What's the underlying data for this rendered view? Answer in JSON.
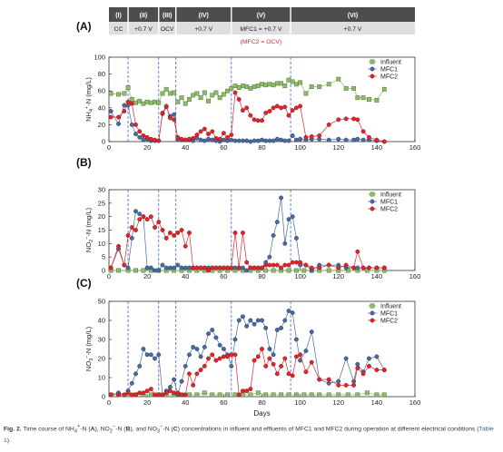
{
  "phases": {
    "labels": [
      "(I)",
      "(II)",
      "(III)",
      "(IV)",
      "(V)",
      "(VI)"
    ],
    "conditions": [
      "CC",
      "+0.7 V",
      "OCV",
      "+0.7 V",
      "MFC1 = +0.7 V",
      "+0.7 V"
    ],
    "note": "(MFC2 = OCV)",
    "boundaries_days": [
      0,
      10,
      26,
      35,
      64,
      95,
      160
    ],
    "colors": {
      "header_dark": "#4d4d4d",
      "header_light": "#dedede",
      "note": "#e0262b"
    }
  },
  "x_axis": {
    "label": "Days",
    "ticks": [
      0,
      20,
      40,
      60,
      80,
      100,
      120,
      140,
      160
    ],
    "lim": [
      0,
      160
    ]
  },
  "series_style": {
    "Influent": {
      "color": "#8fba6e",
      "marker": "square",
      "edge": "#4f7a33"
    },
    "MFC1": {
      "color": "#4a6b9c",
      "marker": "circle",
      "edge": "#1f3a66"
    },
    "MFC2": {
      "color": "#e0262b",
      "marker": "circle",
      "edge": "#8e1014"
    }
  },
  "chart_data": [
    {
      "type": "line",
      "panel": "(A)",
      "ylabel": "NH₄⁺-N (mg/L)",
      "ylabel_parts": [
        "NH",
        "4",
        "+",
        "-N (mg/L)"
      ],
      "ylim": [
        0,
        100
      ],
      "yticks": [
        0,
        20,
        40,
        60,
        80,
        100
      ],
      "legend": [
        "Influent",
        "MFC1",
        "MFC2"
      ],
      "series": [
        {
          "name": "Influent",
          "x": [
            1,
            5,
            8,
            10,
            12,
            14,
            16,
            18,
            20,
            22,
            24,
            26,
            28,
            30,
            32,
            34,
            36,
            38,
            40,
            42,
            44,
            46,
            48,
            50,
            52,
            54,
            56,
            58,
            60,
            62,
            64,
            66,
            68,
            70,
            72,
            74,
            76,
            78,
            80,
            82,
            84,
            86,
            88,
            90,
            92,
            94,
            96,
            98,
            100,
            103,
            106,
            110,
            115,
            120,
            124,
            128,
            130,
            133,
            136,
            140,
            144
          ],
          "y": [
            57,
            56,
            57,
            64,
            50,
            46,
            48,
            45,
            47,
            46,
            47,
            46,
            57,
            62,
            57,
            58,
            47,
            52,
            45,
            50,
            55,
            57,
            52,
            58,
            48,
            55,
            58,
            52,
            56,
            60,
            63,
            66,
            64,
            66,
            65,
            63,
            65,
            66,
            68,
            67,
            68,
            67,
            69,
            69,
            66,
            73,
            71,
            68,
            70,
            57,
            65,
            65,
            68,
            74,
            63,
            63,
            52,
            52,
            50,
            49,
            62
          ]
        },
        {
          "name": "MFC1",
          "x": [
            1,
            5,
            8,
            10,
            12,
            14,
            16,
            18,
            20,
            22,
            24,
            26,
            28,
            30,
            32,
            34,
            36,
            38,
            40,
            42,
            44,
            46,
            48,
            50,
            52,
            54,
            56,
            58,
            60,
            62,
            64,
            66,
            68,
            70,
            72,
            74,
            76,
            78,
            80,
            82,
            84,
            86,
            88,
            90,
            92,
            94,
            96,
            98,
            100,
            103,
            106,
            110,
            115,
            120,
            124,
            128,
            130,
            133,
            136,
            140,
            144
          ],
          "y": [
            36,
            21,
            43,
            43,
            20,
            9,
            5,
            2,
            3,
            1,
            1,
            1,
            33,
            41,
            30,
            32,
            3,
            2,
            2,
            2,
            1,
            4,
            2,
            1,
            3,
            2,
            1,
            0,
            2,
            1,
            2,
            1,
            1,
            1,
            1,
            0,
            1,
            1,
            2,
            1,
            1,
            1,
            3,
            2,
            1,
            1,
            7,
            2,
            3,
            2,
            3,
            3,
            2,
            3,
            2,
            2,
            3,
            2,
            2,
            1,
            0
          ]
        },
        {
          "name": "MFC2",
          "x": [
            1,
            5,
            8,
            10,
            12,
            14,
            16,
            18,
            20,
            22,
            24,
            26,
            28,
            30,
            32,
            34,
            36,
            38,
            40,
            42,
            44,
            46,
            48,
            50,
            52,
            54,
            56,
            58,
            60,
            62,
            64,
            66,
            68,
            70,
            72,
            74,
            76,
            78,
            80,
            82,
            84,
            86,
            88,
            90,
            92,
            94,
            96,
            98,
            100,
            103,
            106,
            110,
            115,
            120,
            124,
            128,
            130,
            133,
            136,
            140,
            144
          ],
          "y": [
            29,
            29,
            36,
            47,
            45,
            20,
            12,
            7,
            5,
            3,
            2,
            1,
            34,
            42,
            28,
            26,
            5,
            3,
            2,
            3,
            4,
            8,
            12,
            15,
            9,
            12,
            4,
            3,
            10,
            5,
            8,
            58,
            50,
            37,
            40,
            31,
            26,
            25,
            25,
            34,
            36,
            40,
            42,
            40,
            41,
            31,
            37,
            40,
            42,
            5,
            6,
            7,
            20,
            26,
            27,
            27,
            26,
            12,
            5,
            2,
            0
          ]
        }
      ]
    },
    {
      "type": "line",
      "panel": "(B)",
      "ylabel": "NO₂⁻-N (mg/L)",
      "ylabel_parts": [
        "NO",
        "2",
        "−",
        "-N (mg/L)"
      ],
      "ylim": [
        0,
        30
      ],
      "yticks": [
        0,
        5,
        10,
        15,
        20,
        25,
        30
      ],
      "legend": [
        "Influent",
        "MFC1",
        "MFC2"
      ],
      "series": [
        {
          "name": "Influent",
          "x": [
            1,
            5,
            10,
            14,
            18,
            22,
            26,
            30,
            34,
            38,
            42,
            46,
            50,
            54,
            58,
            62,
            66,
            70,
            74,
            78,
            82,
            86,
            90,
            94,
            98,
            102,
            106,
            110,
            115,
            120,
            125,
            130,
            135,
            140,
            144
          ],
          "y": [
            0,
            0,
            0,
            0,
            0,
            0,
            0,
            0,
            0,
            0,
            0,
            0,
            0,
            0,
            0,
            0,
            0,
            0,
            0,
            0,
            0,
            0,
            0,
            0,
            0,
            0,
            0,
            0,
            0,
            0,
            0,
            0,
            0,
            0,
            0
          ]
        },
        {
          "name": "MFC1",
          "x": [
            1,
            5,
            8,
            10,
            12,
            14,
            16,
            18,
            20,
            22,
            24,
            26,
            28,
            30,
            32,
            34,
            36,
            38,
            40,
            42,
            44,
            46,
            48,
            50,
            52,
            54,
            56,
            58,
            60,
            62,
            64,
            66,
            68,
            70,
            72,
            74,
            76,
            78,
            80,
            82,
            84,
            86,
            88,
            90,
            92,
            94,
            96,
            98,
            100,
            103,
            106,
            110,
            115,
            120,
            124,
            128,
            130,
            133,
            136,
            140,
            144
          ],
          "y": [
            1,
            8,
            2,
            1,
            12,
            22,
            21,
            20,
            1,
            1,
            0,
            0,
            2,
            1,
            1,
            1,
            2,
            1,
            1,
            1,
            1,
            1,
            1,
            1,
            1,
            1,
            1,
            1,
            1,
            1,
            1,
            1,
            1,
            1,
            0,
            1,
            1,
            1,
            1,
            3,
            5,
            13,
            18,
            27,
            10,
            19,
            20,
            12,
            2,
            2,
            0,
            2,
            2,
            2,
            1,
            1,
            1,
            1,
            1,
            1,
            1
          ]
        },
        {
          "name": "MFC2",
          "x": [
            1,
            5,
            8,
            10,
            12,
            14,
            16,
            18,
            20,
            22,
            24,
            26,
            28,
            30,
            32,
            34,
            36,
            38,
            40,
            42,
            44,
            46,
            48,
            50,
            52,
            54,
            56,
            58,
            60,
            62,
            64,
            66,
            68,
            70,
            72,
            74,
            76,
            78,
            80,
            82,
            84,
            86,
            88,
            90,
            92,
            94,
            96,
            98,
            100,
            103,
            106,
            110,
            115,
            120,
            124,
            128,
            130,
            133,
            136,
            140,
            144
          ],
          "y": [
            1,
            9,
            2,
            13,
            16,
            15,
            19,
            20,
            19,
            20,
            16,
            18,
            15,
            12,
            14,
            13,
            14,
            15,
            9,
            14,
            1,
            1,
            1,
            1,
            0,
            1,
            1,
            1,
            1,
            1,
            1,
            14,
            1,
            14,
            3,
            1,
            1,
            1,
            1,
            2,
            2,
            2,
            2,
            1,
            2,
            2,
            3,
            3,
            3,
            2,
            1,
            1,
            2,
            1,
            2,
            1,
            7,
            1,
            1,
            1,
            1
          ]
        }
      ]
    },
    {
      "type": "line",
      "panel": "(C)",
      "ylabel": "NO₃⁻-N (mg/L)",
      "ylabel_parts": [
        "NO",
        "3",
        "−",
        "-N (mg/L)"
      ],
      "ylim": [
        0,
        50
      ],
      "yticks": [
        0,
        10,
        20,
        30,
        40,
        50
      ],
      "legend": [
        "Influent",
        "MFC1",
        "MFC2"
      ],
      "series": [
        {
          "name": "Influent",
          "x": [
            1,
            5,
            10,
            14,
            18,
            22,
            26,
            30,
            34,
            38,
            42,
            46,
            50,
            54,
            58,
            62,
            66,
            70,
            74,
            78,
            82,
            86,
            90,
            94,
            98,
            102,
            106,
            110,
            115,
            120,
            125,
            130,
            135,
            140,
            144
          ],
          "y": [
            1,
            1,
            1,
            1,
            1,
            1,
            1,
            1,
            1,
            1,
            1,
            1,
            2,
            1,
            1,
            1,
            1,
            1,
            1,
            2,
            1,
            1,
            1,
            1,
            1,
            1,
            1,
            1,
            1,
            1,
            1,
            1,
            2,
            1,
            1
          ]
        },
        {
          "name": "MFC1",
          "x": [
            1,
            5,
            8,
            10,
            12,
            14,
            16,
            18,
            20,
            22,
            24,
            26,
            28,
            30,
            32,
            34,
            36,
            38,
            40,
            42,
            44,
            46,
            48,
            50,
            52,
            54,
            56,
            58,
            60,
            62,
            64,
            66,
            68,
            70,
            72,
            74,
            76,
            78,
            80,
            82,
            84,
            86,
            88,
            90,
            92,
            94,
            96,
            98,
            100,
            103,
            106,
            110,
            115,
            120,
            124,
            128,
            130,
            133,
            136,
            140,
            144
          ],
          "y": [
            1,
            2,
            1,
            3,
            7,
            12,
            16,
            25,
            22,
            22,
            20,
            22,
            1,
            3,
            5,
            9,
            1,
            8,
            16,
            22,
            26,
            25,
            21,
            26,
            33,
            35,
            31,
            27,
            25,
            22,
            16,
            30,
            40,
            42,
            37,
            40,
            38,
            40,
            40,
            36,
            25,
            22,
            35,
            36,
            40,
            45,
            44,
            30,
            19,
            24,
            34,
            9,
            7,
            8,
            20,
            8,
            17,
            13,
            20,
            21,
            14
          ]
        },
        {
          "name": "MFC2",
          "x": [
            1,
            5,
            8,
            10,
            12,
            14,
            16,
            18,
            20,
            22,
            24,
            26,
            28,
            30,
            32,
            34,
            36,
            38,
            40,
            42,
            44,
            46,
            48,
            50,
            52,
            54,
            56,
            58,
            60,
            62,
            64,
            66,
            68,
            70,
            72,
            74,
            76,
            78,
            80,
            82,
            84,
            86,
            88,
            90,
            92,
            94,
            96,
            98,
            100,
            103,
            106,
            110,
            115,
            120,
            124,
            128,
            130,
            133,
            136,
            140,
            144
          ],
          "y": [
            1,
            1,
            1,
            2,
            1,
            1,
            2,
            2,
            3,
            4,
            1,
            1,
            1,
            2,
            3,
            2,
            2,
            1,
            1,
            12,
            6,
            12,
            14,
            16,
            20,
            22,
            19,
            20,
            21,
            21,
            22,
            22,
            1,
            3,
            3,
            4,
            19,
            21,
            25,
            16,
            20,
            17,
            12,
            16,
            20,
            12,
            11,
            21,
            22,
            13,
            18,
            9,
            9,
            6,
            6,
            6,
            15,
            12,
            16,
            14,
            14
          ]
        }
      ]
    }
  ],
  "caption": {
    "fig_label": "Fig. 2.",
    "text_parts": [
      " Time course of NH",
      "4",
      "+",
      "-N (",
      "A",
      "), NO",
      "2",
      "−",
      "-N (",
      "B",
      "), and NO",
      "3",
      "−",
      "-N (",
      "C",
      ") concentrations in influent and effluents of MFC1 and MFC2 during operation at different electrical conditions (",
      "Table 1",
      ")."
    ]
  }
}
